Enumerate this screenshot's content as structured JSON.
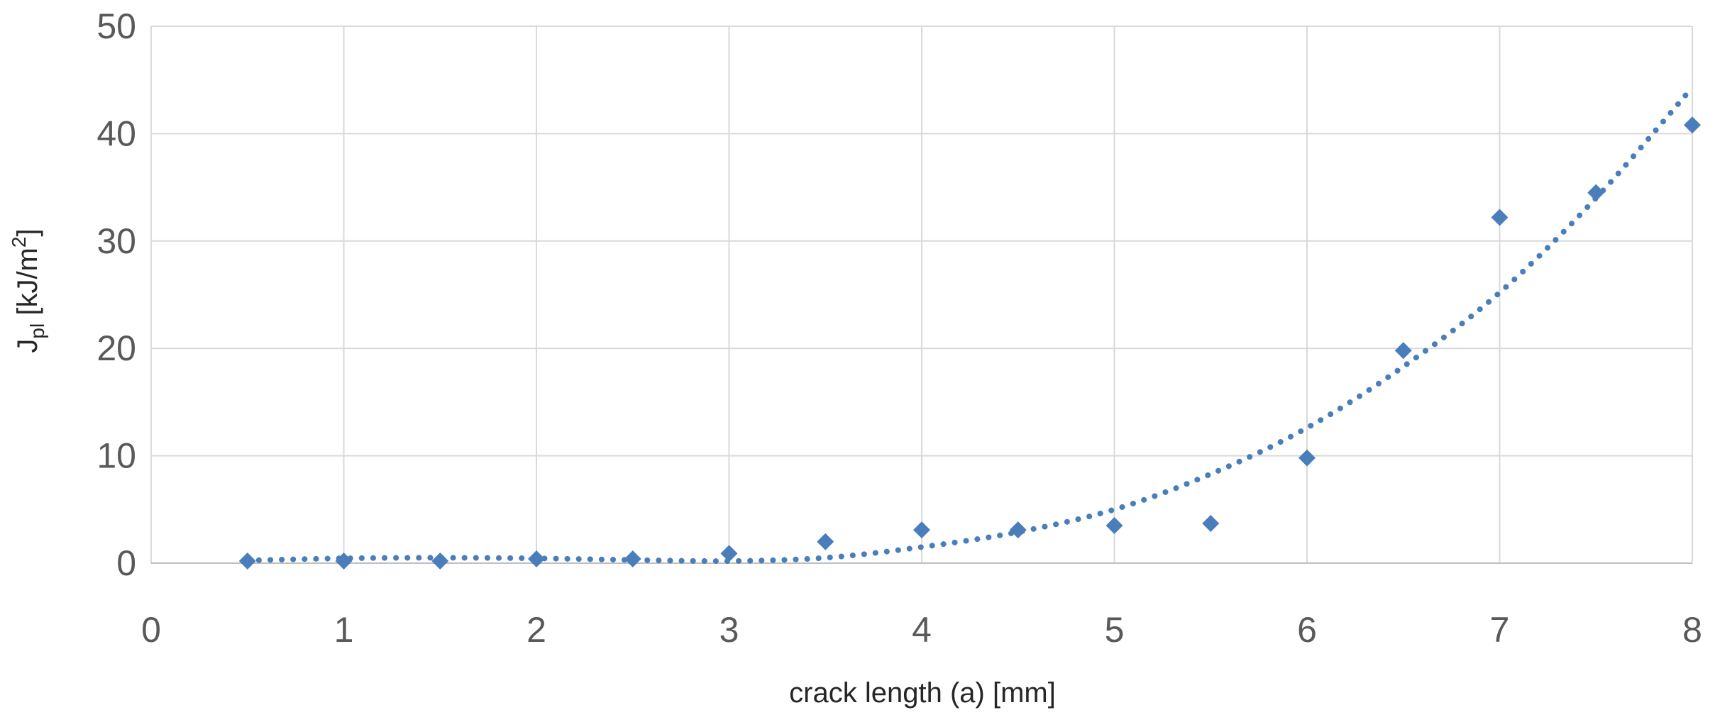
{
  "chart_data": {
    "type": "scatter",
    "xlabel": "crack length (a) [mm]",
    "ylabel": {
      "main": "J",
      "subscript": "pl",
      "unit_prefix": " [kJ/m",
      "superscript": "2",
      "unit_suffix": "]"
    },
    "xlim": [
      0,
      8
    ],
    "ylim": [
      0,
      50
    ],
    "xticks": [
      0,
      1,
      2,
      3,
      4,
      5,
      6,
      7,
      8
    ],
    "yticks": [
      0,
      10,
      20,
      30,
      40,
      50
    ],
    "grid": true,
    "legend": "none",
    "color": "#4a7ebb",
    "marker": "diamond",
    "series": [
      {
        "points": [
          {
            "x": 0.5,
            "y": 0.2
          },
          {
            "x": 1.0,
            "y": 0.2
          },
          {
            "x": 1.5,
            "y": 0.2
          },
          {
            "x": 2.0,
            "y": 0.4
          },
          {
            "x": 2.5,
            "y": 0.4
          },
          {
            "x": 3.0,
            "y": 0.9
          },
          {
            "x": 3.5,
            "y": 2.0
          },
          {
            "x": 4.0,
            "y": 3.1
          },
          {
            "x": 4.5,
            "y": 3.1
          },
          {
            "x": 5.0,
            "y": 3.5
          },
          {
            "x": 5.5,
            "y": 3.7
          },
          {
            "x": 6.0,
            "y": 9.8
          },
          {
            "x": 6.5,
            "y": 19.8
          },
          {
            "x": 7.0,
            "y": 32.2
          },
          {
            "x": 7.5,
            "y": 34.5
          },
          {
            "x": 8.0,
            "y": 40.8
          }
        ],
        "trendline": {
          "style": "dotted",
          "points": [
            {
              "x": 0.5,
              "y": 0.25
            },
            {
              "x": 1.0,
              "y": 0.45
            },
            {
              "x": 1.5,
              "y": 0.5
            },
            {
              "x": 2.0,
              "y": 0.45
            },
            {
              "x": 2.5,
              "y": 0.3
            },
            {
              "x": 3.0,
              "y": 0.2
            },
            {
              "x": 3.5,
              "y": 0.5
            },
            {
              "x": 4.0,
              "y": 1.5
            },
            {
              "x": 4.5,
              "y": 2.9
            },
            {
              "x": 5.0,
              "y": 5.0
            },
            {
              "x": 5.5,
              "y": 8.3
            },
            {
              "x": 6.0,
              "y": 12.6
            },
            {
              "x": 6.5,
              "y": 18.3
            },
            {
              "x": 7.0,
              "y": 25.2
            },
            {
              "x": 7.5,
              "y": 34.0
            },
            {
              "x": 8.0,
              "y": 44.3
            }
          ]
        }
      }
    ]
  }
}
